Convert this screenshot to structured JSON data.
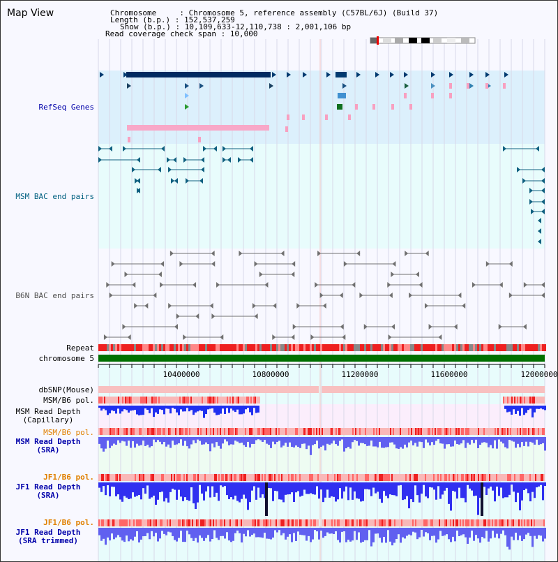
{
  "header": {
    "title": "Map View",
    "info_lines": [
      "Chromosome     : Chromosome 5, reference assembly (C57BL/6J) (Build 37)",
      "Length (b.p.) : 152,537,259",
      "Show (b.p.) : 10,109,633-12,110,738 : 2,001,106 bp",
      "Read coverage check span : 10,000"
    ]
  },
  "tracks": {
    "refseq": "RefSeq Genes",
    "msm_bac": "MSM BAC end pairs",
    "b6n_bac": "B6N BAC end pairs",
    "repeat": "Repeat",
    "chromosome": "chromosome 5",
    "dbsnp": "dbSNP(Mouse)",
    "msm_b6_pol": "MSM/B6 pol.",
    "msm_read_depth_cap_1": "MSM Read Depth",
    "msm_read_depth_cap_2": "(Capillary)",
    "msm_b6_pol_2": "MSM/B6 pol.",
    "msm_read_depth_sra_1": "MSM Read Depth",
    "msm_read_depth_sra_2": "(SRA)",
    "jf1_b6_pol": "JF1/B6 pol.",
    "jf1_read_depth_1": "JF1 Read Depth",
    "jf1_read_depth_2": "(SRA)",
    "jf1_b6_pol_2": "JF1/B6 pol.",
    "jf1_read_depth_trim_1": "JF1 Read Depth",
    "jf1_read_depth_trim_2": "(SRA trimmed)"
  },
  "axis": {
    "ticks": [
      "10400000",
      "10800000",
      "11200000",
      "11600000",
      "12000000"
    ]
  },
  "colors": {
    "label_gray": "#000000",
    "label_blue": "#0000aa",
    "label_teal": "#006080",
    "label_orange": "#e08000",
    "refseq_bg": "#dcf0fc",
    "msm_bg": "#e8fcfc",
    "read_depth_blue": "#4a4af0",
    "pol_red": "#ff4040"
  }
}
